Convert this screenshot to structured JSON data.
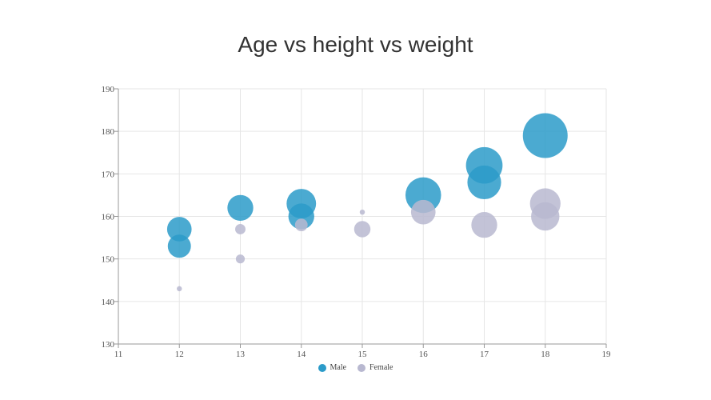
{
  "chart_data": {
    "type": "scatter",
    "title": "Age vs height vs weight",
    "xlabel": "",
    "ylabel": "",
    "xlim": [
      11,
      19
    ],
    "ylim": [
      130,
      190
    ],
    "x_ticks": [
      11,
      12,
      13,
      14,
      15,
      16,
      17,
      18,
      19
    ],
    "y_ticks": [
      130,
      140,
      150,
      160,
      170,
      180,
      190
    ],
    "grid": true,
    "legend_position": "bottom-center",
    "series": [
      {
        "name": "Male",
        "color": "#2b9bc9",
        "points": [
          {
            "x": 12,
            "y": 157,
            "size": 45
          },
          {
            "x": 12,
            "y": 153,
            "size": 40
          },
          {
            "x": 13,
            "y": 162,
            "size": 50
          },
          {
            "x": 14,
            "y": 163,
            "size": 65
          },
          {
            "x": 14,
            "y": 160,
            "size": 50
          },
          {
            "x": 16,
            "y": 165,
            "size": 95
          },
          {
            "x": 17,
            "y": 172,
            "size": 100
          },
          {
            "x": 17,
            "y": 168,
            "size": 85
          },
          {
            "x": 18,
            "y": 179,
            "size": 150
          }
        ]
      },
      {
        "name": "Female",
        "color": "#b8b8d0",
        "points": [
          {
            "x": 12,
            "y": 143,
            "size": 2
          },
          {
            "x": 13,
            "y": 157,
            "size": 8
          },
          {
            "x": 13,
            "y": 150,
            "size": 6
          },
          {
            "x": 14,
            "y": 158,
            "size": 12
          },
          {
            "x": 15,
            "y": 161,
            "size": 2
          },
          {
            "x": 15,
            "y": 157,
            "size": 20
          },
          {
            "x": 16,
            "y": 161,
            "size": 45
          },
          {
            "x": 17,
            "y": 158,
            "size": 50
          },
          {
            "x": 18,
            "y": 163,
            "size": 70
          },
          {
            "x": 18,
            "y": 160,
            "size": 60
          }
        ]
      }
    ]
  }
}
